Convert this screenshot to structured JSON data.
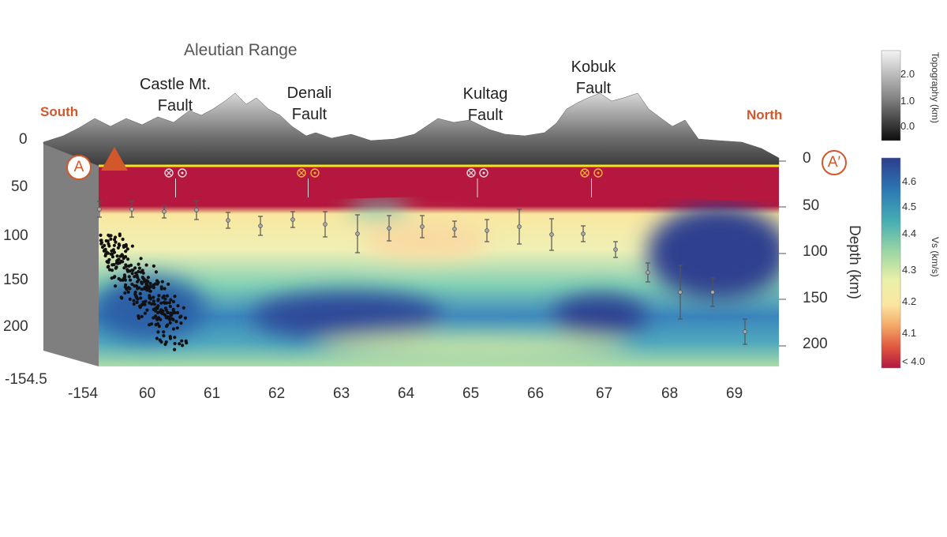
{
  "title": "Aleutian Range",
  "direction": {
    "south": "South",
    "north": "North"
  },
  "profile_endpoints": {
    "start": "A",
    "end": "A′"
  },
  "faults": [
    {
      "line1": "Castle Mt.",
      "line2": "Fault"
    },
    {
      "line1": "Denali",
      "line2": "Fault"
    },
    {
      "line1": "Kultag",
      "line2": "Fault"
    },
    {
      "line1": "Kobuk",
      "line2": "Fault"
    }
  ],
  "left_depth_ticks": [
    "0",
    "50",
    "100",
    "150",
    "200"
  ],
  "right_depth_ticks": [
    "0",
    "50",
    "100",
    "150",
    "200"
  ],
  "depth_axis_label": "Depth (km)",
  "corner_longitude": "-154.5",
  "x_ticks": [
    "-154",
    "60",
    "61",
    "62",
    "63",
    "64",
    "65",
    "66",
    "67",
    "68",
    "69"
  ],
  "topography_colorbar": {
    "title": "Topography (km)",
    "ticks": [
      "2.0",
      "1.0",
      "0.0"
    ]
  },
  "vs_colorbar": {
    "title": "Vs (km/s)",
    "ticks": [
      "4.6",
      "4.5",
      "4.4",
      "4.3",
      "4.2",
      "4.1",
      "< 4.0"
    ],
    "colors": [
      "#2f3d8f",
      "#2b77b3",
      "#45aeb3",
      "#9ed6a4",
      "#e9f0a9",
      "#fbe6a0",
      "#f3a767",
      "#e0573f",
      "#b3173f"
    ]
  },
  "colors": {
    "accent": "#d2572b",
    "moho_line": "#f5e31a",
    "crust": "#b5173e"
  }
}
